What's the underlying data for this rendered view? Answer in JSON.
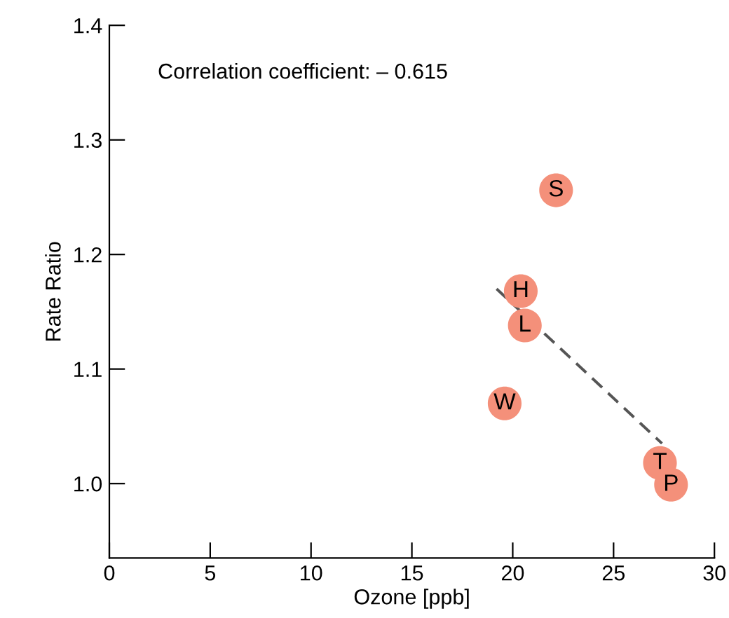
{
  "chart_data": {
    "type": "scatter",
    "xlabel": "Ozone [ppb]",
    "ylabel": "Rate Ratio",
    "xlim": [
      0,
      30
    ],
    "ylim": [
      0.935,
      1.4
    ],
    "xticks": [
      0,
      5,
      10,
      15,
      20,
      25,
      30
    ],
    "yticks": [
      {
        "value": 1.0,
        "label": "1.0"
      },
      1.1,
      1.2,
      1.3,
      1.4
    ],
    "grid": false,
    "marker": "circle",
    "series": [
      {
        "color": "#f4907a",
        "x": [
          22.15,
          20.4,
          20.6,
          19.6,
          27.3,
          27.85
        ],
        "values": [
          1.256,
          1.168,
          1.138,
          1.07,
          1.018,
          0.999
        ]
      },
      {
        "type": "line",
        "color": "#555555",
        "line_style": "dashed",
        "marker": "none",
        "x": [
          19.2,
          27.4
        ],
        "values": [
          1.17,
          1.035
        ]
      }
    ],
    "annotations": [
      "Correlation coefficient: – 0.615",
      {
        "text": "S",
        "x": 22.15,
        "y": 1.256
      },
      {
        "text": "H",
        "x": 20.4,
        "y": 1.168
      },
      {
        "text": "L",
        "x": 20.6,
        "y": 1.138
      },
      {
        "text": "W",
        "x": 19.6,
        "y": 1.07
      },
      {
        "text": "T",
        "x": 27.3,
        "y": 1.018
      },
      {
        "text": "P",
        "x": 27.85,
        "y": 0.999
      }
    ]
  }
}
